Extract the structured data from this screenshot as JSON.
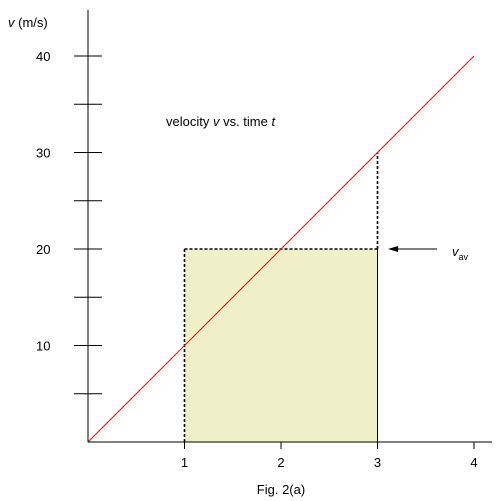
{
  "chart_data": {
    "type": "line",
    "title": "",
    "caption": "Fig. 2(a)",
    "annotation": {
      "prefix": "velocity ",
      "var1": "v",
      "mid": " vs. time ",
      "var2": "t"
    },
    "y_axis_label": {
      "var": "v",
      "unit": " (m/s)"
    },
    "x_ticks": [
      1,
      2,
      3,
      4
    ],
    "y_ticks": [
      10,
      20,
      30,
      40
    ],
    "xlim": [
      0,
      4.2
    ],
    "ylim": [
      0,
      45
    ],
    "series": [
      {
        "x": [
          0,
          4
        ],
        "y": [
          0,
          40
        ],
        "color": "#ff0000"
      }
    ],
    "shaded_region": {
      "x": [
        1,
        3
      ],
      "y": [
        0,
        20
      ],
      "fill": "#efefc8"
    },
    "dashed_guides": [
      {
        "from": [
          1,
          0
        ],
        "to": [
          1,
          20
        ]
      },
      {
        "from": [
          1,
          20
        ],
        "to": [
          3,
          20
        ]
      },
      {
        "from": [
          3,
          20
        ],
        "to": [
          3,
          30
        ]
      }
    ],
    "v_av_label": {
      "main": "v",
      "sub": "av"
    },
    "v_av_value": 20
  }
}
